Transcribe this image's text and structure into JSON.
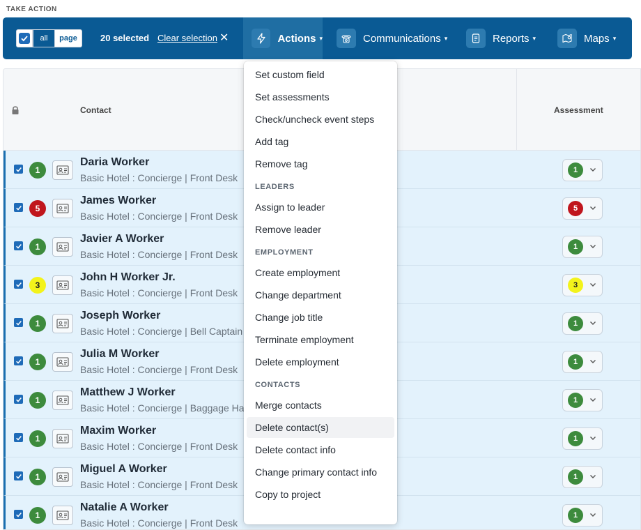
{
  "section_title": "TAKE ACTION",
  "toolbar": {
    "all_label": "all",
    "page_label": "page",
    "selected_count": "20 selected",
    "clear_selection": "Clear selection",
    "clear_x": "✕",
    "actions_label": "Actions",
    "communications_label": "Communications",
    "reports_label": "Reports",
    "maps_label": "Maps",
    "caret": "▾",
    "colors": {
      "bar": "#0a5a94",
      "active": "#1f6ea3"
    }
  },
  "table": {
    "header_contact": "Contact",
    "header_assessment": "Assessment",
    "rows": [
      {
        "badge": "1",
        "level": "green",
        "name": "Daria Worker",
        "sub": "Basic Hotel : Concierge | Front Desk"
      },
      {
        "badge": "5",
        "level": "red",
        "name": "James Worker",
        "sub": "Basic Hotel : Concierge | Front Desk"
      },
      {
        "badge": "1",
        "level": "green",
        "name": "Javier A Worker",
        "sub": "Basic Hotel : Concierge | Front Desk"
      },
      {
        "badge": "3",
        "level": "yellow",
        "name": "John H Worker Jr.",
        "sub": "Basic Hotel : Concierge | Front Desk"
      },
      {
        "badge": "1",
        "level": "green",
        "name": "Joseph Worker",
        "sub": "Basic Hotel : Concierge | Bell Captain"
      },
      {
        "badge": "1",
        "level": "green",
        "name": "Julia M Worker",
        "sub": "Basic Hotel : Concierge | Front Desk"
      },
      {
        "badge": "1",
        "level": "green",
        "name": "Matthew J Worker",
        "sub": "Basic Hotel : Concierge | Baggage Handler"
      },
      {
        "badge": "1",
        "level": "green",
        "name": "Maxim Worker",
        "sub": "Basic Hotel : Concierge | Front Desk"
      },
      {
        "badge": "1",
        "level": "green",
        "name": "Miguel A Worker",
        "sub": "Basic Hotel : Concierge | Front Desk"
      },
      {
        "badge": "1",
        "level": "green",
        "name": "Natalie A Worker",
        "sub": "Basic Hotel : Concierge | Front Desk"
      }
    ],
    "badge_colors": {
      "green": "#3d8b3d",
      "red": "#c0161d",
      "yellow": "#f3f31b"
    }
  },
  "menu": {
    "items_top": [
      "Set custom field",
      "Set assessments",
      "Check/uncheck event steps",
      "Add tag",
      "Remove tag"
    ],
    "leaders_heading": "LEADERS",
    "leaders": [
      "Assign to leader",
      "Remove leader"
    ],
    "employment_heading": "EMPLOYMENT",
    "employment": [
      "Create employment",
      "Change department",
      "Change job title",
      "Terminate employment",
      "Delete employment"
    ],
    "contacts_heading": "CONTACTS",
    "contacts": [
      "Merge contacts",
      "Delete contact(s)",
      "Delete contact info",
      "Change primary contact info",
      "Copy to project"
    ],
    "hovered_item": "Delete contact(s)"
  }
}
